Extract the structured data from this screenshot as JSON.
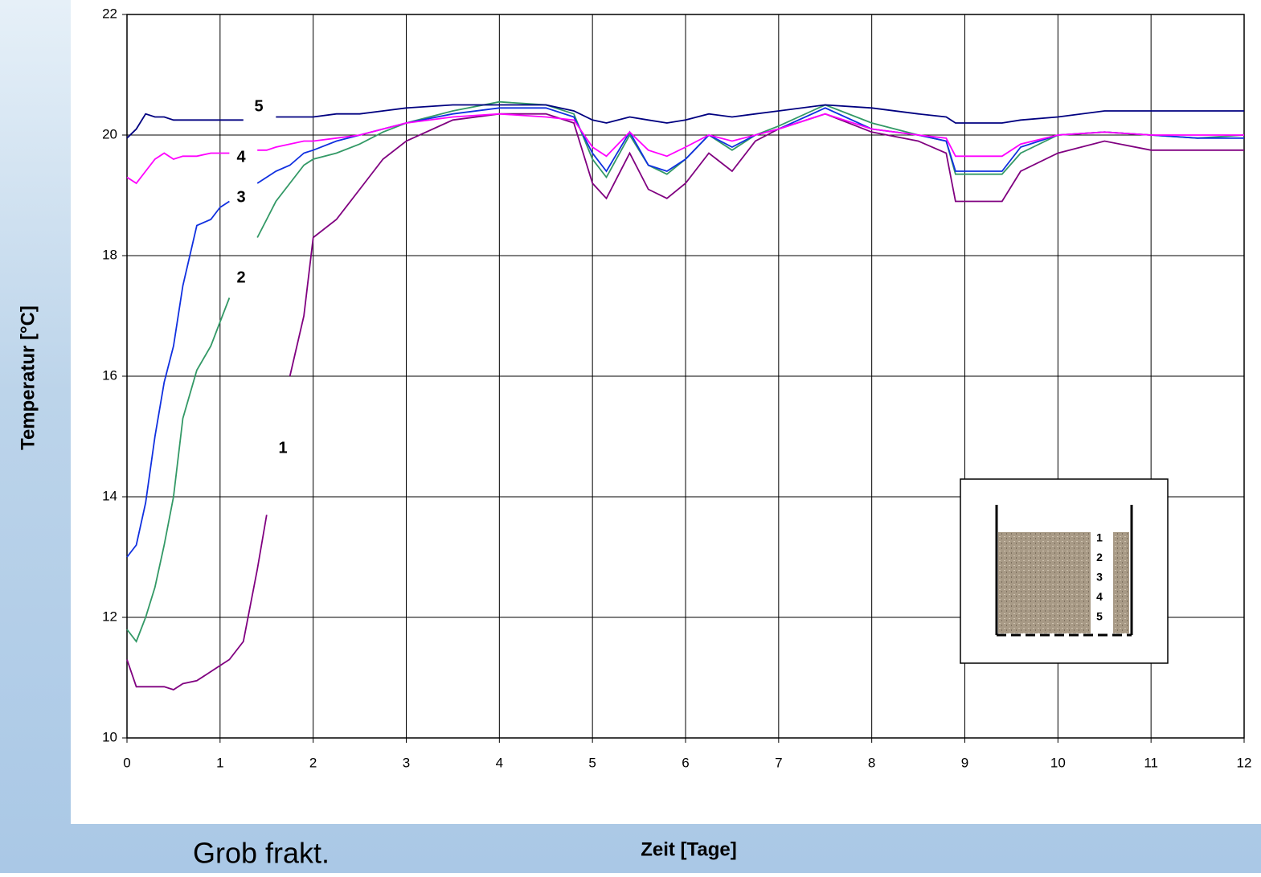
{
  "chart_data": {
    "type": "line",
    "x_label": "Zeit [Tage]",
    "y_label": "Temperatur [°C]",
    "caption": "Grob frakt.",
    "x": [
      0,
      0.1,
      0.2,
      0.3,
      0.4,
      0.5,
      0.6,
      0.75,
      0.9,
      1,
      1.1,
      1.25,
      1.4,
      1.5,
      1.6,
      1.75,
      1.9,
      2,
      2.25,
      2.5,
      2.75,
      3,
      3.5,
      4,
      4.5,
      4.8,
      5,
      5.15,
      5.4,
      5.6,
      5.8,
      6,
      6.25,
      6.5,
      6.75,
      7,
      7.5,
      8,
      8.5,
      8.8,
      8.9,
      9.4,
      9.6,
      10,
      10.5,
      11,
      11.5,
      12
    ],
    "series": [
      {
        "name": "1",
        "color": "#800080",
        "values": [
          11.3,
          10.85,
          10.85,
          10.85,
          10.85,
          10.8,
          10.9,
          10.95,
          11.1,
          11.2,
          11.3,
          11.6,
          12.8,
          13.7,
          null,
          16,
          17,
          18.3,
          18.6,
          19.1,
          19.6,
          19.9,
          20.25,
          20.35,
          20.35,
          20.2,
          19.2,
          18.95,
          19.7,
          19.1,
          18.95,
          19.2,
          19.7,
          19.4,
          19.9,
          20.1,
          20.35,
          20.05,
          19.9,
          19.7,
          18.9,
          18.9,
          19.4,
          19.7,
          19.9,
          19.75,
          19.75,
          19.75
        ]
      },
      {
        "name": "2",
        "color": "#339966",
        "values": [
          11.8,
          11.6,
          12,
          12.5,
          13.2,
          14,
          15.3,
          16.1,
          16.5,
          16.9,
          17.3,
          null,
          18.3,
          18.6,
          18.9,
          19.2,
          19.5,
          19.6,
          19.7,
          19.85,
          20.05,
          20.2,
          20.4,
          20.55,
          20.5,
          20.35,
          19.6,
          19.3,
          20,
          19.5,
          19.35,
          19.6,
          20,
          19.75,
          20,
          20.15,
          20.5,
          20.2,
          20,
          19.9,
          19.35,
          19.35,
          19.7,
          20,
          20.05,
          20,
          19.95,
          20
        ]
      },
      {
        "name": "3",
        "color": "#1030e0",
        "values": [
          13,
          13.2,
          13.9,
          15,
          15.9,
          16.5,
          17.5,
          18.5,
          18.6,
          18.8,
          18.9,
          null,
          19.2,
          19.3,
          19.4,
          19.5,
          19.7,
          19.75,
          19.9,
          20,
          20.1,
          20.2,
          20.35,
          20.45,
          20.45,
          20.3,
          19.7,
          19.4,
          20.05,
          19.5,
          19.4,
          19.6,
          20,
          19.8,
          20,
          20.1,
          20.45,
          20.1,
          20,
          19.9,
          19.4,
          19.4,
          19.8,
          20,
          20.05,
          20,
          19.95,
          19.95
        ]
      },
      {
        "name": "4",
        "color": "#ff00ff",
        "values": [
          19.3,
          19.2,
          19.4,
          19.6,
          19.7,
          19.6,
          19.65,
          19.65,
          19.7,
          19.7,
          19.7,
          null,
          19.75,
          19.75,
          19.8,
          19.85,
          19.9,
          19.9,
          19.95,
          20,
          20.1,
          20.2,
          20.3,
          20.35,
          20.3,
          20.25,
          19.8,
          19.65,
          20.05,
          19.75,
          19.65,
          19.8,
          20,
          19.9,
          20,
          20.1,
          20.35,
          20.1,
          20,
          19.95,
          19.65,
          19.65,
          19.85,
          20,
          20.05,
          20,
          20,
          20
        ]
      },
      {
        "name": "5",
        "color": "#000080",
        "values": [
          19.95,
          20.1,
          20.35,
          20.3,
          20.3,
          20.25,
          20.25,
          20.25,
          20.25,
          20.25,
          20.25,
          20.25,
          null,
          null,
          20.3,
          20.3,
          20.3,
          20.3,
          20.35,
          20.35,
          20.4,
          20.45,
          20.5,
          20.5,
          20.5,
          20.4,
          20.25,
          20.2,
          20.3,
          20.25,
          20.2,
          20.25,
          20.35,
          20.3,
          20.35,
          20.4,
          20.5,
          20.45,
          20.35,
          20.3,
          20.2,
          20.2,
          20.25,
          20.3,
          20.4,
          20.4,
          20.4,
          20.4
        ]
      }
    ],
    "xlim": [
      0,
      12
    ],
    "ylim": [
      10,
      22
    ],
    "xticks": [
      0,
      1,
      2,
      3,
      4,
      5,
      6,
      7,
      8,
      9,
      10,
      11,
      12
    ],
    "yticks": [
      10,
      12,
      14,
      16,
      18,
      20,
      22
    ],
    "grid": true,
    "inset_labels": [
      "1",
      "2",
      "3",
      "4",
      "5"
    ]
  }
}
